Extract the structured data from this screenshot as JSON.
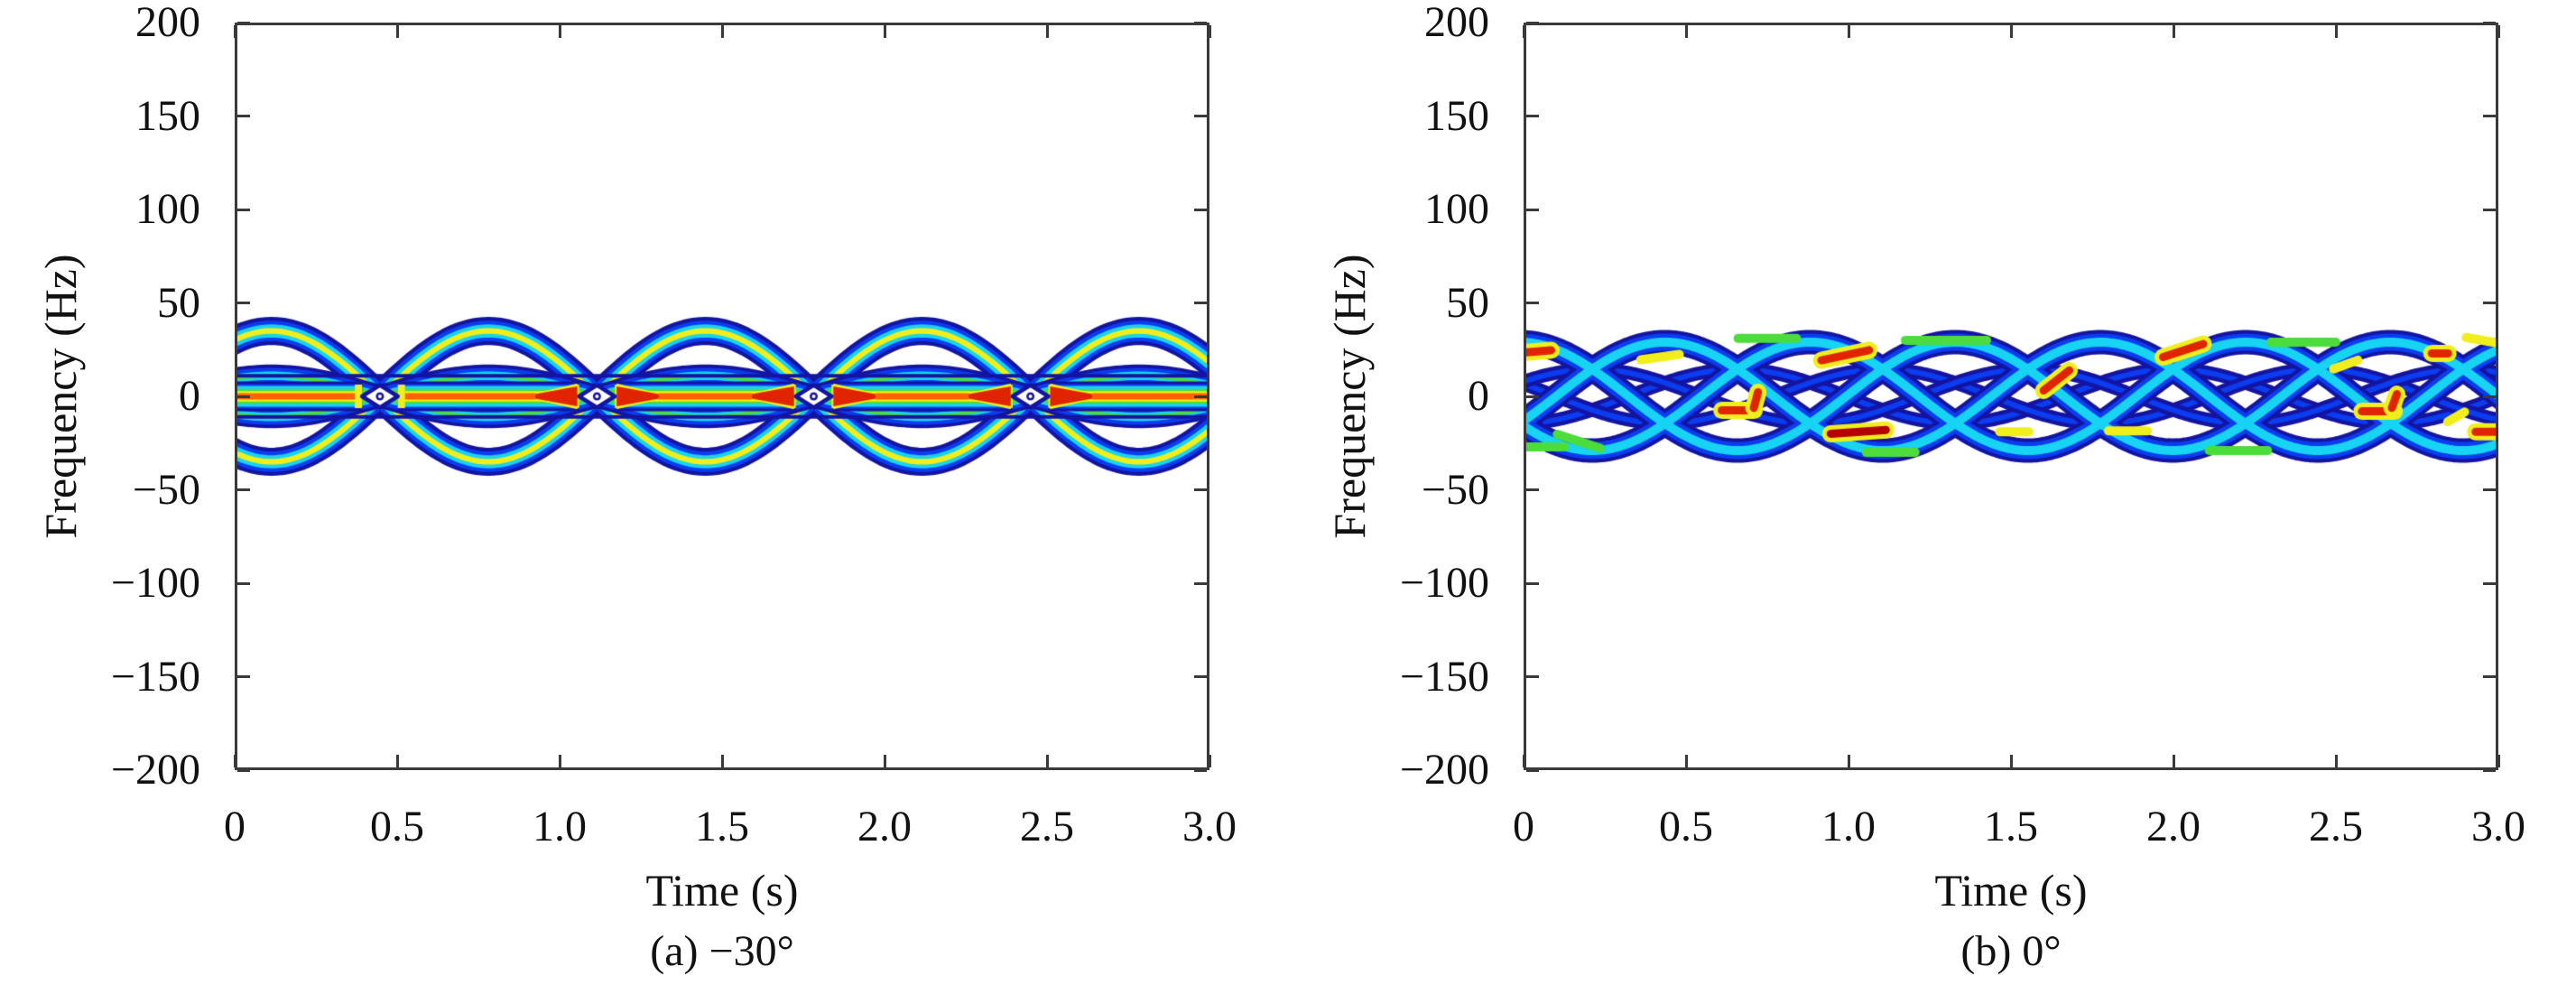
{
  "figure": {
    "panels": [
      {
        "id": "a",
        "caption": "(a) −30°",
        "xlabel": "Time (s)",
        "ylabel": "Frequency (Hz)",
        "xlim": [
          0,
          3
        ],
        "ylim": [
          -200,
          200
        ],
        "xticks": [
          0,
          0.5,
          1.0,
          1.5,
          2.0,
          2.5,
          3.0
        ],
        "xtick_labels": [
          "0",
          "0.5",
          "1.0",
          "1.5",
          "2.0",
          "2.5",
          "3.0"
        ],
        "yticks": [
          200,
          150,
          100,
          50,
          0,
          -50,
          -100,
          -150,
          -200
        ],
        "ytick_labels": [
          "200",
          "150",
          "100",
          "50",
          "0",
          "−50",
          "−100",
          "−150",
          "−200"
        ]
      },
      {
        "id": "b",
        "caption": "(b) 0°",
        "xlabel": "Time (s)",
        "ylabel": "Frequency (Hz)",
        "xlim": [
          0,
          3
        ],
        "ylim": [
          -200,
          200
        ],
        "xticks": [
          0,
          0.5,
          1.0,
          1.5,
          2.0,
          2.5,
          3.0
        ],
        "xtick_labels": [
          "0",
          "0.5",
          "1.0",
          "1.5",
          "2.0",
          "2.5",
          "3.0"
        ],
        "yticks": [
          200,
          150,
          100,
          50,
          0,
          -50,
          -100,
          -150,
          -200
        ],
        "ytick_labels": [
          "200",
          "150",
          "100",
          "50",
          "0",
          "−50",
          "−100",
          "−150",
          "−200"
        ]
      }
    ]
  },
  "colors": {
    "axis": "#3a3a3a",
    "text": "#111111",
    "background": "#ffffff",
    "colormap": {
      "navy": "#1414a0",
      "blue": "#0a3cf0",
      "cyan": "#16d4f2",
      "green": "#4cdc3c",
      "yellow": "#f0ee1c",
      "orange": "#ff6400",
      "red": "#e02400",
      "darkred": "#b40000",
      "white": "#ffffff"
    }
  },
  "chart_data": [
    {
      "type": "heatmap",
      "subtype": "time-frequency-distribution",
      "title": "(a) −30°",
      "xlabel": "Time (s)",
      "ylabel": "Frequency (Hz)",
      "xlim": [
        0,
        3
      ],
      "ylim": [
        -200,
        200
      ],
      "grid": false,
      "colormap": "jet",
      "signal_band_hz": [
        -42,
        42
      ],
      "period_s": 0.6675,
      "pinch_times_s": [
        0.447,
        1.115,
        1.782,
        2.449
      ],
      "lens_centers_s": [
        0.113,
        0.781,
        1.448,
        2.116,
        2.783
      ],
      "outer_arc_peak_hz": 35,
      "inner_arc_peak_hz": 11,
      "sideline_hz": 11,
      "dc_line_hz": 0,
      "hole_halfwidth_s": 0.055,
      "hole_halfheight_hz": 6,
      "arrow_len_s": 0.13,
      "red_arrow_flags": [
        [
          false,
          false
        ],
        [
          true,
          true
        ],
        [
          true,
          true
        ],
        [
          true,
          true
        ]
      ]
    },
    {
      "type": "heatmap",
      "subtype": "time-frequency-distribution",
      "title": "(b) 0°",
      "xlabel": "Time (s)",
      "ylabel": "Frequency (Hz)",
      "xlim": [
        0,
        3
      ],
      "ylim": [
        -200,
        200
      ],
      "grid": false,
      "colormap": "jet",
      "signal_band_hz": [
        -36,
        36
      ],
      "strands": [
        {
          "amplitude_hz": 29,
          "period_s": 1.34,
          "phase_s": 0.1
        },
        {
          "amplitude_hz": 29,
          "period_s": 1.34,
          "phase_s": 0.547
        },
        {
          "amplitude_hz": 29,
          "period_s": 1.34,
          "phase_s": 0.993
        }
      ],
      "mid_strands": [
        {
          "amplitude_hz": 14.5,
          "period_s": 1.34,
          "phase_s": 0.323
        },
        {
          "amplitude_hz": 14.5,
          "period_s": 1.34,
          "phase_s": 0.77
        },
        {
          "amplitude_hz": 14.5,
          "period_s": 1.34,
          "phase_s": 1.217
        }
      ],
      "hot_spots": [
        {
          "t": 0.04,
          "f": 24,
          "angle_deg": 5,
          "len_s": 0.09,
          "shade": "red"
        },
        {
          "t": 0.99,
          "f": 22,
          "angle_deg": 12,
          "len_s": 0.15,
          "shade": "red"
        },
        {
          "t": 0.66,
          "f": -7.5,
          "angle_deg": 0,
          "len_s": 0.1,
          "shade": "red"
        },
        {
          "t": 0.715,
          "f": -2,
          "angle_deg": 75,
          "len_s": 0.05,
          "shade": "red"
        },
        {
          "t": 1.03,
          "f": -19,
          "angle_deg": 4,
          "len_s": 0.17,
          "shade": "darkred"
        },
        {
          "t": 1.64,
          "f": 8.5,
          "angle_deg": 38,
          "len_s": 0.1,
          "shade": "red"
        },
        {
          "t": 2.03,
          "f": 24.5,
          "angle_deg": 18,
          "len_s": 0.13,
          "shade": "red"
        },
        {
          "t": 2.63,
          "f": -8,
          "angle_deg": 0,
          "len_s": 0.1,
          "shade": "red"
        },
        {
          "t": 2.68,
          "f": -2.5,
          "angle_deg": 70,
          "len_s": 0.045,
          "shade": "red"
        },
        {
          "t": 2.97,
          "f": -19,
          "angle_deg": 0,
          "len_s": 0.08,
          "shade": "red"
        },
        {
          "t": 2.82,
          "f": 23,
          "angle_deg": 0,
          "len_s": 0.05,
          "shade": "red"
        }
      ],
      "warm_spots": [
        {
          "t": 0.42,
          "f": 21,
          "angle_deg": 8,
          "len_s": 0.12,
          "shade": "yellow"
        },
        {
          "t": 0.17,
          "f": -24,
          "angle_deg": -18,
          "len_s": 0.14,
          "shade": "green"
        },
        {
          "t": 0.75,
          "f": 31,
          "angle_deg": 0,
          "len_s": 0.18,
          "shade": "green"
        },
        {
          "t": 1.3,
          "f": 30,
          "angle_deg": 0,
          "len_s": 0.25,
          "shade": "green"
        },
        {
          "t": 1.51,
          "f": -19,
          "angle_deg": 0,
          "len_s": 0.09,
          "shade": "yellow"
        },
        {
          "t": 1.86,
          "f": -18.5,
          "angle_deg": 0,
          "len_s": 0.12,
          "shade": "yellow"
        },
        {
          "t": 2.53,
          "f": 17,
          "angle_deg": 20,
          "len_s": 0.08,
          "shade": "yellow"
        },
        {
          "t": 2.87,
          "f": -11,
          "angle_deg": 30,
          "len_s": 0.06,
          "shade": "yellow"
        },
        {
          "t": 2.4,
          "f": 29,
          "angle_deg": 0,
          "len_s": 0.2,
          "shade": "green"
        },
        {
          "t": 1.13,
          "f": -30,
          "angle_deg": 0,
          "len_s": 0.15,
          "shade": "green"
        },
        {
          "t": 2.2,
          "f": -29,
          "angle_deg": 0,
          "len_s": 0.18,
          "shade": "green"
        },
        {
          "t": 0.05,
          "f": -27,
          "angle_deg": 0,
          "len_s": 0.15,
          "shade": "green"
        },
        {
          "t": 2.95,
          "f": 30,
          "angle_deg": -10,
          "len_s": 0.1,
          "shade": "yellow"
        }
      ]
    }
  ]
}
